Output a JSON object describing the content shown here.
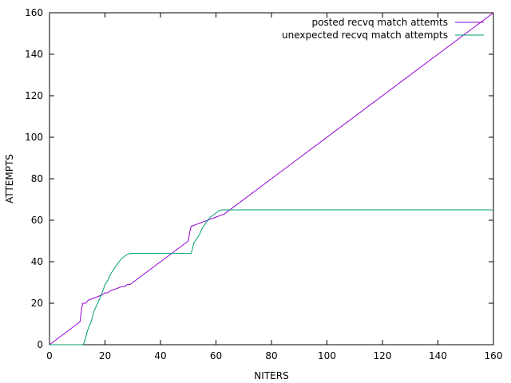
{
  "chart_data": {
    "type": "line",
    "title": "",
    "xlabel": "NITERS",
    "ylabel": "ATTEMPTS",
    "xlim": [
      0,
      160
    ],
    "ylim": [
      0,
      160
    ],
    "xticks": [
      0,
      20,
      40,
      60,
      80,
      100,
      120,
      140,
      160
    ],
    "yticks": [
      0,
      20,
      40,
      60,
      80,
      100,
      120,
      140,
      160
    ],
    "grid": false,
    "legend_position": "top-right",
    "series": [
      {
        "name": "posted recvq match attemts",
        "color": "#9400d3",
        "x": [
          0,
          11,
          11.5,
          12,
          13,
          14,
          15,
          16,
          17,
          18,
          19,
          20,
          21,
          22,
          23,
          24,
          25,
          26,
          27,
          28,
          29,
          50,
          50.5,
          51,
          52,
          53,
          54,
          55,
          56,
          57,
          58,
          59,
          60,
          61,
          62,
          63,
          160
        ],
        "y": [
          0,
          11,
          17,
          20,
          20,
          21.5,
          22,
          22.5,
          23,
          23.5,
          24,
          25,
          25,
          26,
          26.5,
          27,
          27.5,
          28,
          28,
          29,
          29,
          50,
          54,
          57,
          57.5,
          58,
          58.5,
          59,
          59.5,
          60,
          60.5,
          61,
          61.5,
          62,
          62.5,
          63,
          160
        ]
      },
      {
        "name": "unexpected recvq match attempts",
        "color": "#009e73",
        "x": [
          0,
          12,
          12.5,
          13,
          13.5,
          14,
          15,
          16,
          17,
          18,
          19,
          20,
          21,
          22,
          23,
          24,
          25,
          26,
          27,
          28,
          29,
          30,
          35,
          40,
          45,
          50,
          51,
          51.5,
          52,
          53,
          54,
          55,
          56,
          57,
          58,
          59,
          60,
          61,
          62,
          63,
          70,
          100,
          130,
          160
        ],
        "y": [
          0,
          0,
          1,
          3,
          6,
          8,
          11,
          16,
          19,
          22,
          25,
          29,
          31,
          34,
          36,
          38,
          40,
          41.5,
          42.5,
          43.5,
          44,
          44,
          44,
          44,
          44,
          44,
          44,
          46,
          49,
          51,
          53,
          56,
          58,
          60,
          61.5,
          62.5,
          63.5,
          64.5,
          65,
          65,
          65,
          65,
          65,
          65
        ]
      }
    ]
  }
}
